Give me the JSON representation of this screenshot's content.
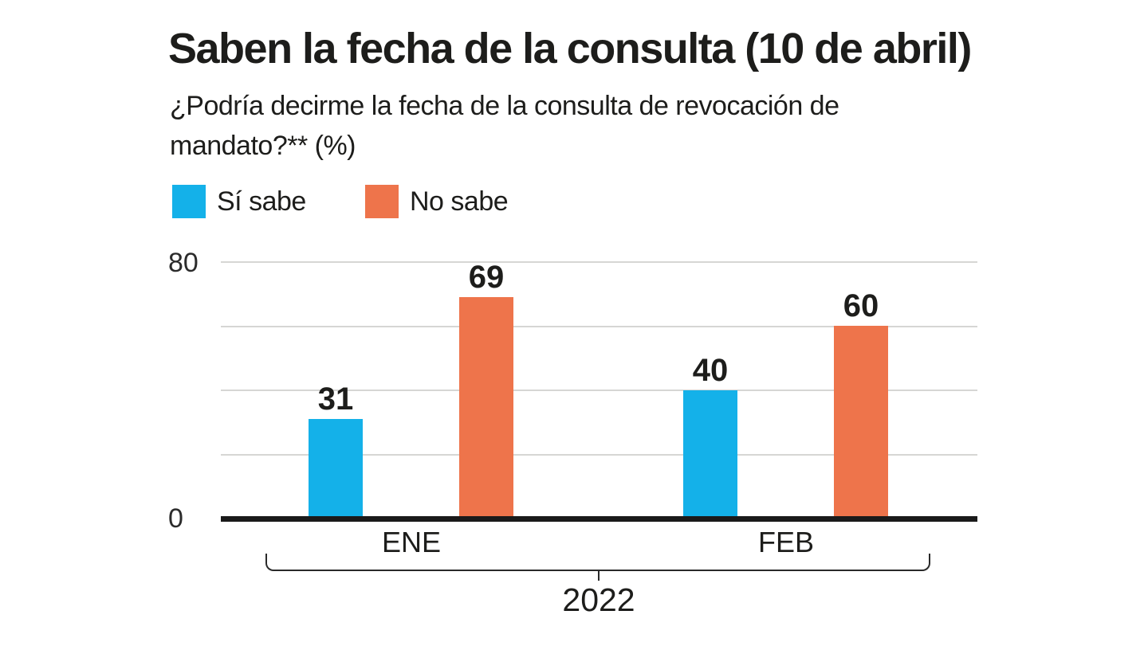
{
  "chart": {
    "title": "Saben la fecha de la consulta (10 de abril)",
    "subtitle": "¿Podría decirme la fecha de la consulta de revocación de mandato?** (%)",
    "colors": {
      "si_sabe": "#14b1e9",
      "no_sabe": "#ee744b",
      "axis": "#1a1a1a",
      "grid": "#d6d6d4",
      "text": "#1d1d1b"
    }
  },
  "chart_data": {
    "type": "bar",
    "categories": [
      "ENE",
      "FEB"
    ],
    "series": [
      {
        "name": "Sí sabe",
        "color_key": "si_sabe",
        "values": [
          31,
          40
        ]
      },
      {
        "name": "No sabe",
        "color_key": "no_sabe",
        "values": [
          69,
          60
        ]
      }
    ],
    "group_label": "2022",
    "ylim": [
      0,
      80
    ],
    "ytick_labels_shown": [
      "80",
      "0"
    ],
    "gridline_values": [
      80,
      60,
      40,
      20
    ],
    "grid": true,
    "legend": [
      "Sí sabe",
      "No sabe"
    ],
    "legend_position": "top-left",
    "bar_value_labels": true
  }
}
